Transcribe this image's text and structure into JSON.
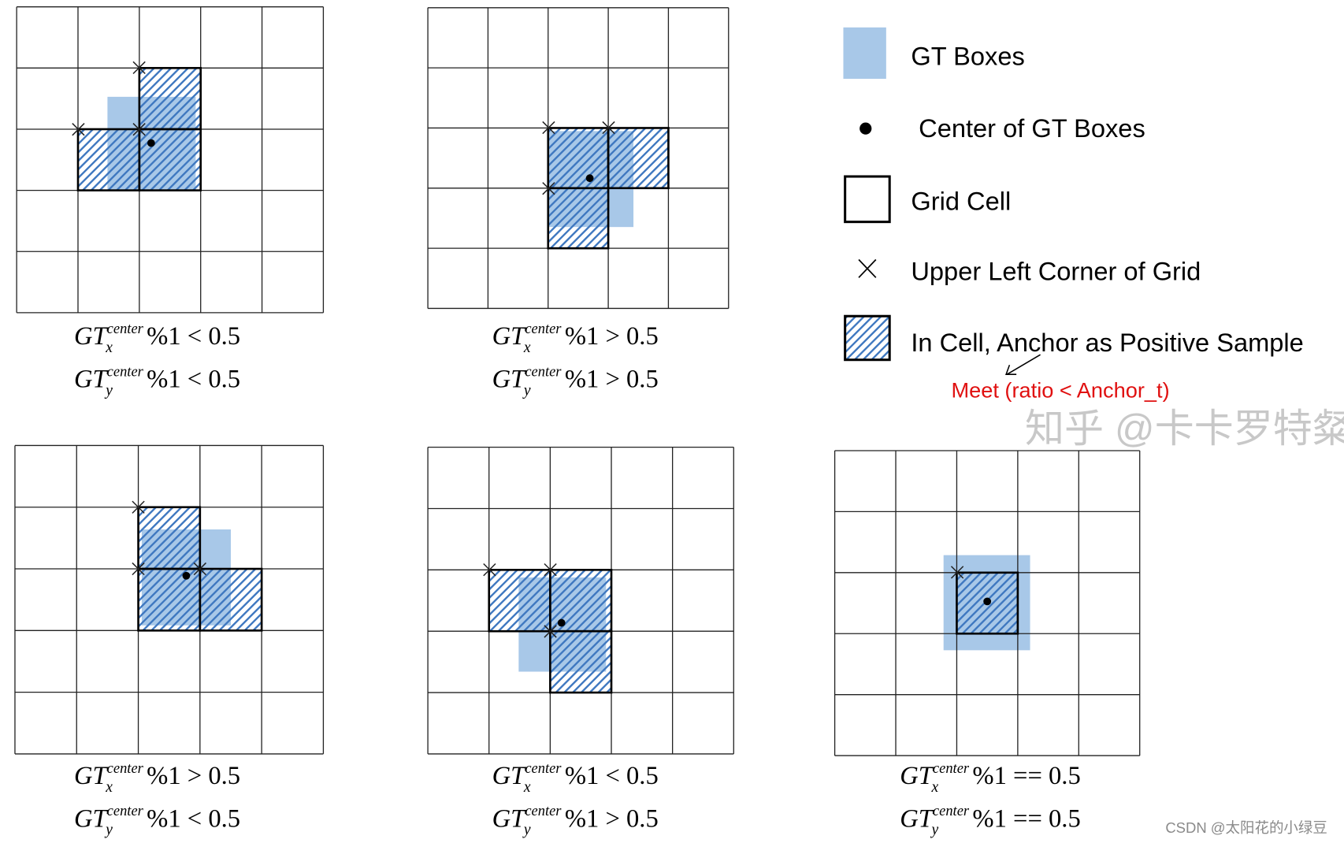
{
  "colors": {
    "gt_box": "#a8c8e8",
    "hatch": "#3f78c0",
    "grid": "#222222",
    "note": "#e01010",
    "watermark": "#9a9a9a"
  },
  "panels": [
    {
      "name": "top-left",
      "fx": {
        "base": "GT",
        "sup": "center",
        "sub": "x",
        "rel": "%1 < 0.5"
      },
      "fy": {
        "base": "GT",
        "sup": "center",
        "sub": "y",
        "rel": "%1 < 0.5"
      }
    },
    {
      "name": "top-middle",
      "fx": {
        "base": "GT",
        "sup": "center",
        "sub": "x",
        "rel": "%1 > 0.5"
      },
      "fy": {
        "base": "GT",
        "sup": "center",
        "sub": "y",
        "rel": "%1 > 0.5"
      }
    },
    {
      "name": "bottom-left",
      "fx": {
        "base": "GT",
        "sup": "center",
        "sub": "x",
        "rel": "%1 > 0.5"
      },
      "fy": {
        "base": "GT",
        "sup": "center",
        "sub": "y",
        "rel": "%1 < 0.5"
      }
    },
    {
      "name": "bottom-middle",
      "fx": {
        "base": "GT",
        "sup": "center",
        "sub": "x",
        "rel": "%1 < 0.5"
      },
      "fy": {
        "base": "GT",
        "sup": "center",
        "sub": "y",
        "rel": "%1 > 0.5"
      }
    },
    {
      "name": "bottom-right",
      "fx": {
        "base": "GT",
        "sup": "center",
        "sub": "x",
        "rel": "%1 == 0.5"
      },
      "fy": {
        "base": "GT",
        "sup": "center",
        "sub": "y",
        "rel": "%1 == 0.5"
      }
    }
  ],
  "legend": {
    "gt_boxes": "GT Boxes",
    "center": "Center of GT Boxes",
    "grid_cell": "Grid Cell",
    "upper_left": "Upper Left Corner of Grid",
    "positive": "In Cell, Anchor as Positive Sample",
    "note": "Meet (ratio < Anchor_t)"
  },
  "watermarks": {
    "zhihu": "知乎 @卡卡罗特粲",
    "csdn": "CSDN @太阳花的小绿豆"
  }
}
